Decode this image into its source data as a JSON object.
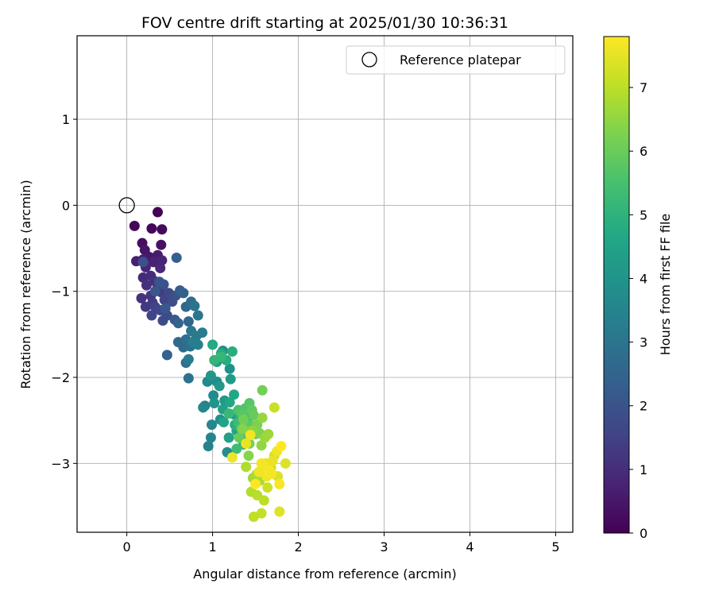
{
  "chart_data": {
    "type": "scatter",
    "title": "FOV centre drift starting at 2025/01/30 10:36:31",
    "xlabel": "Angular distance from reference (arcmin)",
    "ylabel": "Rotation from reference (arcmin)",
    "xlim": [
      -0.58,
      5.2
    ],
    "ylim": [
      -3.8,
      1.97
    ],
    "xticks": [
      0,
      1,
      2,
      3,
      4,
      5
    ],
    "yticks": [
      -3,
      -2,
      -1,
      0,
      1
    ],
    "xtick_labels": [
      "0",
      "1",
      "2",
      "3",
      "4",
      "5"
    ],
    "ytick_labels": [
      "−3",
      "−2",
      "−1",
      "0",
      "1"
    ],
    "grid": true,
    "legend": {
      "placement": "top-right",
      "entries": [
        "Reference platepar"
      ]
    },
    "reference_point": {
      "x": 0,
      "y": 0,
      "label": "Reference platepar"
    },
    "colorbar": {
      "label": "Hours from first FF file",
      "colormap": "viridis",
      "range": [
        0,
        7.8
      ],
      "ticks": [
        0,
        1,
        2,
        3,
        4,
        5,
        6,
        7
      ],
      "tick_labels": [
        "0",
        "1",
        "2",
        "3",
        "4",
        "5",
        "6",
        "7"
      ]
    },
    "series": [
      {
        "points": [
          [
            0.36,
            -0.08,
            0.05
          ],
          [
            0.09,
            -0.24,
            0.1
          ],
          [
            0.29,
            -0.27,
            0.15
          ],
          [
            0.41,
            -0.28,
            0.2
          ],
          [
            0.18,
            -0.44,
            0.3
          ],
          [
            0.4,
            -0.46,
            0.35
          ],
          [
            0.21,
            -0.52,
            0.45
          ],
          [
            0.26,
            -0.6,
            0.5
          ],
          [
            0.36,
            -0.58,
            0.6
          ],
          [
            0.19,
            -0.63,
            0.65
          ],
          [
            0.11,
            -0.65,
            0.7
          ],
          [
            0.31,
            -0.66,
            0.75
          ],
          [
            0.41,
            -0.64,
            0.8
          ],
          [
            0.22,
            -0.72,
            0.85
          ],
          [
            0.39,
            -0.73,
            0.9
          ],
          [
            0.19,
            -0.84,
            0.95
          ],
          [
            0.28,
            -0.82,
            1.0
          ],
          [
            0.23,
            -0.93,
            1.05
          ],
          [
            0.32,
            -0.88,
            1.1
          ],
          [
            0.17,
            -1.08,
            1.15
          ],
          [
            0.28,
            -1.05,
            1.2
          ],
          [
            0.36,
            -0.95,
            1.25
          ],
          [
            0.22,
            -1.18,
            1.3
          ],
          [
            0.3,
            -1.13,
            1.35
          ],
          [
            0.4,
            -1.01,
            1.4
          ],
          [
            0.33,
            -1.18,
            1.5
          ],
          [
            0.44,
            -1.1,
            1.55
          ],
          [
            0.29,
            -1.28,
            1.6
          ],
          [
            0.39,
            -1.22,
            1.65
          ],
          [
            0.49,
            -1.02,
            1.7
          ],
          [
            0.42,
            -1.34,
            1.75
          ],
          [
            0.47,
            -1.28,
            1.8
          ],
          [
            0.53,
            -1.12,
            1.85
          ],
          [
            0.19,
            -0.66,
            1.9
          ],
          [
            0.43,
            -0.92,
            1.95
          ],
          [
            0.57,
            -1.05,
            2.0
          ],
          [
            0.38,
            -0.89,
            2.05
          ],
          [
            0.33,
            -1.0,
            2.1
          ],
          [
            0.45,
            -1.2,
            2.15
          ],
          [
            0.56,
            -1.33,
            2.2
          ],
          [
            0.62,
            -0.99,
            2.3
          ],
          [
            0.58,
            -0.61,
            2.35
          ],
          [
            0.47,
            -1.74,
            2.4
          ],
          [
            0.66,
            -1.02,
            2.45
          ],
          [
            0.6,
            -1.37,
            2.5
          ],
          [
            0.72,
            -1.35,
            2.55
          ],
          [
            0.69,
            -1.18,
            2.6
          ],
          [
            0.6,
            -1.59,
            2.65
          ],
          [
            0.66,
            -1.65,
            2.7
          ],
          [
            0.75,
            -1.12,
            2.75
          ],
          [
            0.69,
            -1.56,
            2.8
          ],
          [
            0.74,
            -1.64,
            2.85
          ],
          [
            0.69,
            -1.83,
            2.9
          ],
          [
            0.72,
            -2.01,
            2.95
          ],
          [
            0.79,
            -1.17,
            3.0
          ],
          [
            0.83,
            -1.28,
            3.05
          ],
          [
            0.75,
            -1.46,
            3.1
          ],
          [
            0.81,
            -1.52,
            3.15
          ],
          [
            0.88,
            -1.48,
            3.2
          ],
          [
            0.72,
            -1.79,
            3.25
          ],
          [
            0.77,
            -1.59,
            3.3
          ],
          [
            0.83,
            -1.62,
            3.35
          ],
          [
            0.91,
            -2.33,
            3.4
          ],
          [
            0.95,
            -2.8,
            3.45
          ],
          [
            0.98,
            -2.7,
            3.5
          ],
          [
            0.99,
            -2.55,
            3.55
          ],
          [
            0.89,
            -2.35,
            3.6
          ],
          [
            0.94,
            -2.05,
            3.65
          ],
          [
            1.01,
            -2.21,
            3.7
          ],
          [
            1.05,
            -2.05,
            3.75
          ],
          [
            1.12,
            -1.69,
            3.8
          ],
          [
            1.17,
            -2.87,
            3.85
          ],
          [
            1.2,
            -1.9,
            3.9
          ],
          [
            1.09,
            -2.49,
            3.95
          ],
          [
            1.02,
            -2.3,
            4.0
          ],
          [
            0.98,
            -1.98,
            4.1
          ],
          [
            1.08,
            -2.1,
            4.15
          ],
          [
            1.14,
            -2.27,
            4.2
          ],
          [
            1.21,
            -2.02,
            4.25
          ],
          [
            1.05,
            -1.82,
            4.3
          ],
          [
            1.25,
            -2.43,
            4.35
          ],
          [
            1.12,
            -2.37,
            4.4
          ],
          [
            1.19,
            -2.7,
            4.45
          ],
          [
            1.28,
            -2.62,
            4.5
          ],
          [
            1.13,
            -2.52,
            4.55
          ],
          [
            1.2,
            -2.29,
            4.6
          ],
          [
            1.25,
            -2.2,
            4.65
          ],
          [
            1.0,
            -1.62,
            4.7
          ],
          [
            1.1,
            -1.72,
            4.75
          ],
          [
            1.16,
            -1.8,
            4.8
          ],
          [
            1.23,
            -1.7,
            4.85
          ],
          [
            1.26,
            -2.55,
            4.9
          ],
          [
            1.32,
            -2.43,
            4.95
          ],
          [
            1.36,
            -2.78,
            5.0
          ],
          [
            1.02,
            -1.8,
            5.1
          ],
          [
            1.1,
            -1.76,
            5.15
          ],
          [
            1.19,
            -2.42,
            5.2
          ],
          [
            1.3,
            -2.52,
            5.25
          ],
          [
            1.38,
            -2.51,
            5.3
          ],
          [
            1.28,
            -2.83,
            5.35
          ],
          [
            1.37,
            -2.67,
            5.4
          ],
          [
            1.42,
            -2.47,
            5.45
          ],
          [
            1.33,
            -2.59,
            5.5
          ],
          [
            1.3,
            -2.38,
            5.6
          ],
          [
            1.38,
            -2.36,
            5.65
          ],
          [
            1.43,
            -2.3,
            5.7
          ],
          [
            1.35,
            -2.43,
            5.75
          ],
          [
            1.45,
            -2.56,
            5.8
          ],
          [
            1.4,
            -2.6,
            5.85
          ],
          [
            1.46,
            -2.38,
            5.9
          ],
          [
            1.48,
            -2.44,
            5.95
          ],
          [
            1.31,
            -2.7,
            6.0
          ],
          [
            1.5,
            -2.66,
            6.05
          ],
          [
            1.36,
            -2.49,
            6.1
          ],
          [
            1.58,
            -2.15,
            6.15
          ],
          [
            1.43,
            -2.77,
            6.2
          ],
          [
            1.52,
            -2.55,
            6.25
          ],
          [
            1.55,
            -2.65,
            6.3
          ],
          [
            1.35,
            -2.6,
            6.35
          ],
          [
            1.42,
            -2.91,
            6.4
          ],
          [
            1.46,
            -2.62,
            6.45
          ],
          [
            1.57,
            -2.79,
            6.5
          ],
          [
            1.58,
            -2.47,
            6.55
          ],
          [
            1.61,
            -2.7,
            6.6
          ],
          [
            1.65,
            -2.66,
            6.65
          ],
          [
            1.47,
            -3.17,
            6.7
          ],
          [
            1.51,
            -3.13,
            6.75
          ],
          [
            1.55,
            -3.2,
            6.8
          ],
          [
            1.39,
            -3.04,
            6.85
          ],
          [
            1.45,
            -3.33,
            6.9
          ],
          [
            1.52,
            -3.37,
            6.95
          ],
          [
            1.6,
            -3.43,
            7.0
          ],
          [
            1.48,
            -3.62,
            7.05
          ],
          [
            1.57,
            -3.58,
            7.1
          ],
          [
            1.72,
            -2.35,
            7.15
          ],
          [
            1.64,
            -3.28,
            7.2
          ],
          [
            1.68,
            -3.05,
            7.25
          ],
          [
            1.72,
            -2.91,
            7.3
          ],
          [
            1.76,
            -3.15,
            7.35
          ],
          [
            1.85,
            -3.0,
            7.4
          ],
          [
            1.78,
            -3.56,
            7.45
          ],
          [
            1.62,
            -3.0,
            7.5
          ],
          [
            1.7,
            -2.97,
            7.55
          ],
          [
            1.75,
            -2.86,
            7.6
          ],
          [
            1.63,
            -3.15,
            7.65
          ],
          [
            1.57,
            -3.0,
            7.7
          ],
          [
            1.66,
            -3.08,
            7.75
          ],
          [
            1.8,
            -2.8,
            7.8
          ],
          [
            1.78,
            -3.24,
            7.75
          ],
          [
            1.59,
            -3.02,
            7.7
          ],
          [
            1.44,
            -2.67,
            7.65
          ],
          [
            1.23,
            -2.93,
            7.6
          ],
          [
            1.39,
            -2.77,
            7.55
          ],
          [
            1.5,
            -3.24,
            7.8
          ],
          [
            1.69,
            -3.12,
            7.7
          ],
          [
            1.54,
            -3.1,
            7.6
          ]
        ]
      }
    ]
  }
}
